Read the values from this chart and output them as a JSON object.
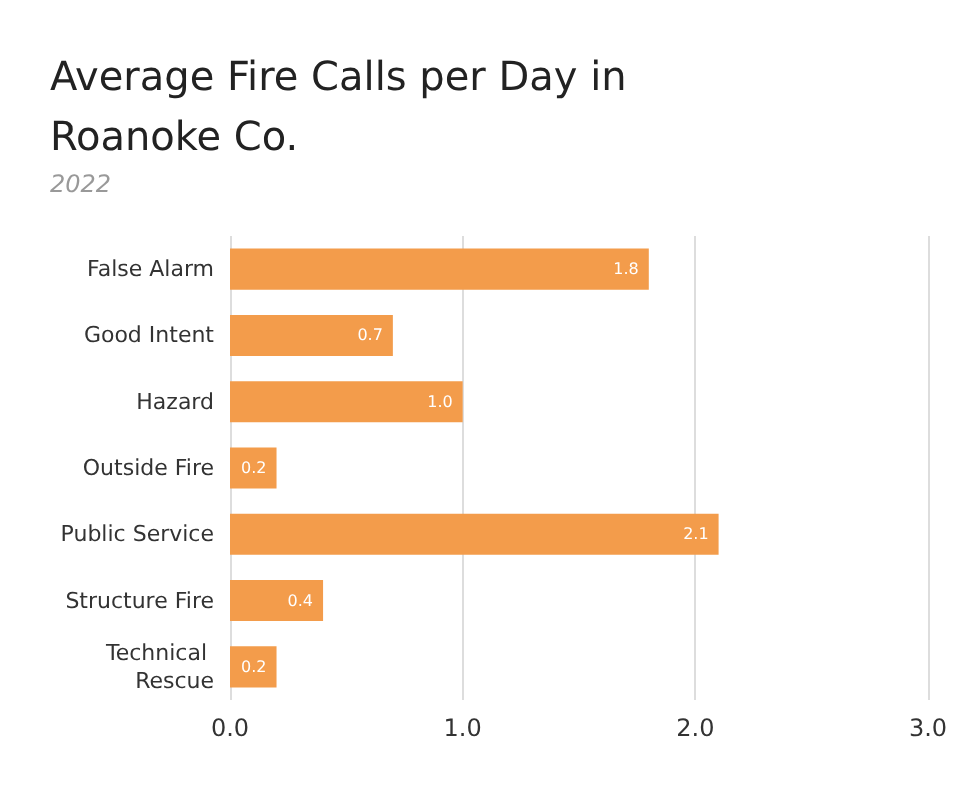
{
  "chart_data": {
    "type": "bar",
    "orientation": "horizontal",
    "title": "Average Fire Calls per Day in Roanoke Co.",
    "subtitle": "2022",
    "categories": [
      "False Alarm",
      "Good Intent",
      "Hazard",
      "Outside Fire",
      "Public Service",
      "Structure Fire",
      "Technical Rescue"
    ],
    "values": [
      1.8,
      0.7,
      1.0,
      0.2,
      2.1,
      0.4,
      0.2
    ],
    "value_labels": [
      "1.8",
      "0.7",
      "1.0",
      "0.2",
      "2.1",
      "0.4",
      "0.2"
    ],
    "color": "#f39c4b",
    "xlim": [
      0,
      3
    ],
    "xticks": [
      {
        "value": 0,
        "label": "0.0"
      },
      {
        "value": 1,
        "label": "1.0"
      },
      {
        "value": 2,
        "label": "2.0"
      },
      {
        "value": 3,
        "label": "3.0"
      }
    ],
    "grid": "x"
  }
}
